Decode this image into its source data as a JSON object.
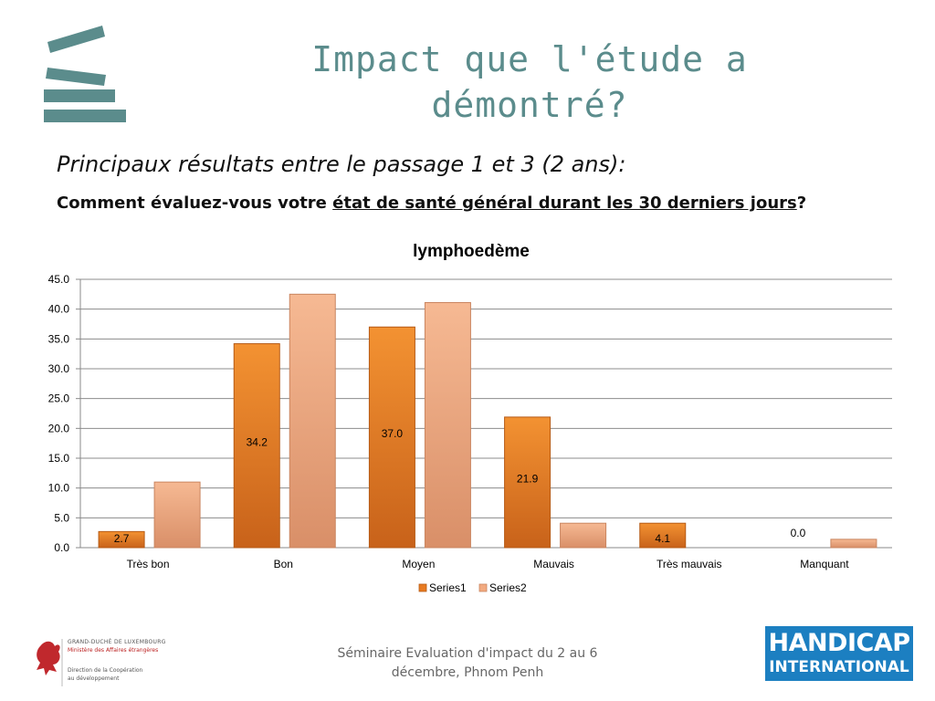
{
  "header": {
    "title_line1": "Impact que l'étude a",
    "title_line2": "démontré?",
    "subtitle": "Principaux résultats entre le passage 1 et 3 (2 ans):",
    "question_prefix": "Comment évaluez-vous votre ",
    "question_underlined": "état de santé général durant les 30 derniers jours",
    "question_suffix": "?"
  },
  "chart_data": {
    "type": "bar",
    "title": "lymphoedème",
    "categories": [
      "Très bon",
      "Bon",
      "Moyen",
      "Mauvais",
      "Très mauvais",
      "Manquant"
    ],
    "series": [
      {
        "name": "Series1",
        "values": [
          2.7,
          34.2,
          37.0,
          21.9,
          4.1,
          0.0
        ],
        "labels": [
          "2.7",
          "34.2",
          "37.0",
          "21.9",
          "4.1",
          "0.0"
        ],
        "color": "#e87b22"
      },
      {
        "name": "Series2",
        "values": [
          11.0,
          42.5,
          41.1,
          4.1,
          0.0,
          1.4
        ],
        "color": "#f2aa80"
      }
    ],
    "ylim": [
      0,
      45
    ],
    "yticks": [
      "0.0",
      "5.0",
      "10.0",
      "15.0",
      "20.0",
      "25.0",
      "30.0",
      "35.0",
      "40.0",
      "45.0"
    ],
    "grid": true,
    "legend": "bottom"
  },
  "footer": {
    "line1": "Séminaire Evaluation d'impact du 2 au 6",
    "line2": "décembre, Phnom Penh"
  },
  "luxembourg": {
    "line1": "GRAND-DUCHÉ DE LUXEMBOURG",
    "line2": "Ministère des Affaires étrangères",
    "line3": "Direction de la Coopération",
    "line4": "au développement"
  },
  "handicap": {
    "line1": "HANDICAP",
    "line2": "INTERNATIONAL"
  },
  "colors": {
    "accent": "#5b8c8c",
    "series1": "#e87b22",
    "series2": "#f2aa80",
    "handicap_blue": "#1c7fc1"
  }
}
